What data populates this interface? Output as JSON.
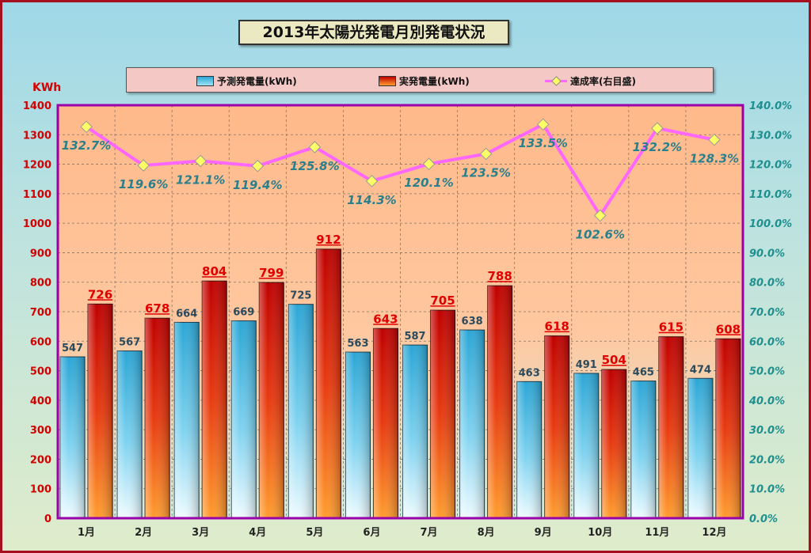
{
  "chart_data": {
    "type": "bar",
    "title": "2013年太陽光発電月別発電状況",
    "ylabel": "KWh",
    "categories": [
      "1月",
      "2月",
      "3月",
      "4月",
      "5月",
      "6月",
      "7月",
      "8月",
      "9月",
      "10月",
      "11月",
      "12月"
    ],
    "series": [
      {
        "name": "予測発電量(kWh)",
        "type": "bar",
        "axis": "left",
        "values": [
          547,
          567,
          664,
          669,
          725,
          563,
          587,
          638,
          463,
          491,
          465,
          474
        ]
      },
      {
        "name": "実発電量(kWh)",
        "type": "bar",
        "axis": "left",
        "values": [
          726,
          678,
          804,
          799,
          912,
          643,
          705,
          788,
          618,
          504,
          615,
          608
        ]
      },
      {
        "name": "達成率(右目盛)",
        "type": "line",
        "axis": "right",
        "values": [
          132.7,
          119.6,
          121.1,
          119.4,
          125.8,
          114.3,
          120.1,
          123.5,
          133.5,
          102.6,
          132.2,
          128.3
        ]
      }
    ],
    "ylim": [
      0,
      1400
    ],
    "yticks": [
      0,
      100,
      200,
      300,
      400,
      500,
      600,
      700,
      800,
      900,
      1000,
      1100,
      1200,
      1300,
      1400
    ],
    "y2lim": [
      0,
      140
    ],
    "y2ticks": [
      "0.0%",
      "10.0%",
      "20.0%",
      "30.0%",
      "40.0%",
      "50.0%",
      "60.0%",
      "70.0%",
      "80.0%",
      "90.0%",
      "100.0%",
      "110.0%",
      "120.0%",
      "130.0%",
      "140.0%"
    ],
    "legend_position": "top",
    "grid": true,
    "colors": {
      "forecast_top": "#2aa6d6",
      "forecast_bottom": "#eefbff",
      "actual_top": "#c00000",
      "actual_bottom": "#ff9d2e",
      "rate_line": "#ff66ff",
      "rate_marker": "#ffff66",
      "plot_top": "#ffb98a",
      "plot_bottom": "#d2ecdc",
      "left_axis_text": "#d40000",
      "right_axis_text": "#1e8f8f",
      "forecast_label": "#2a4a5e",
      "actual_label": "#e00000",
      "rate_label": "#2a7f8c",
      "plot_border": "#9900aa"
    }
  }
}
